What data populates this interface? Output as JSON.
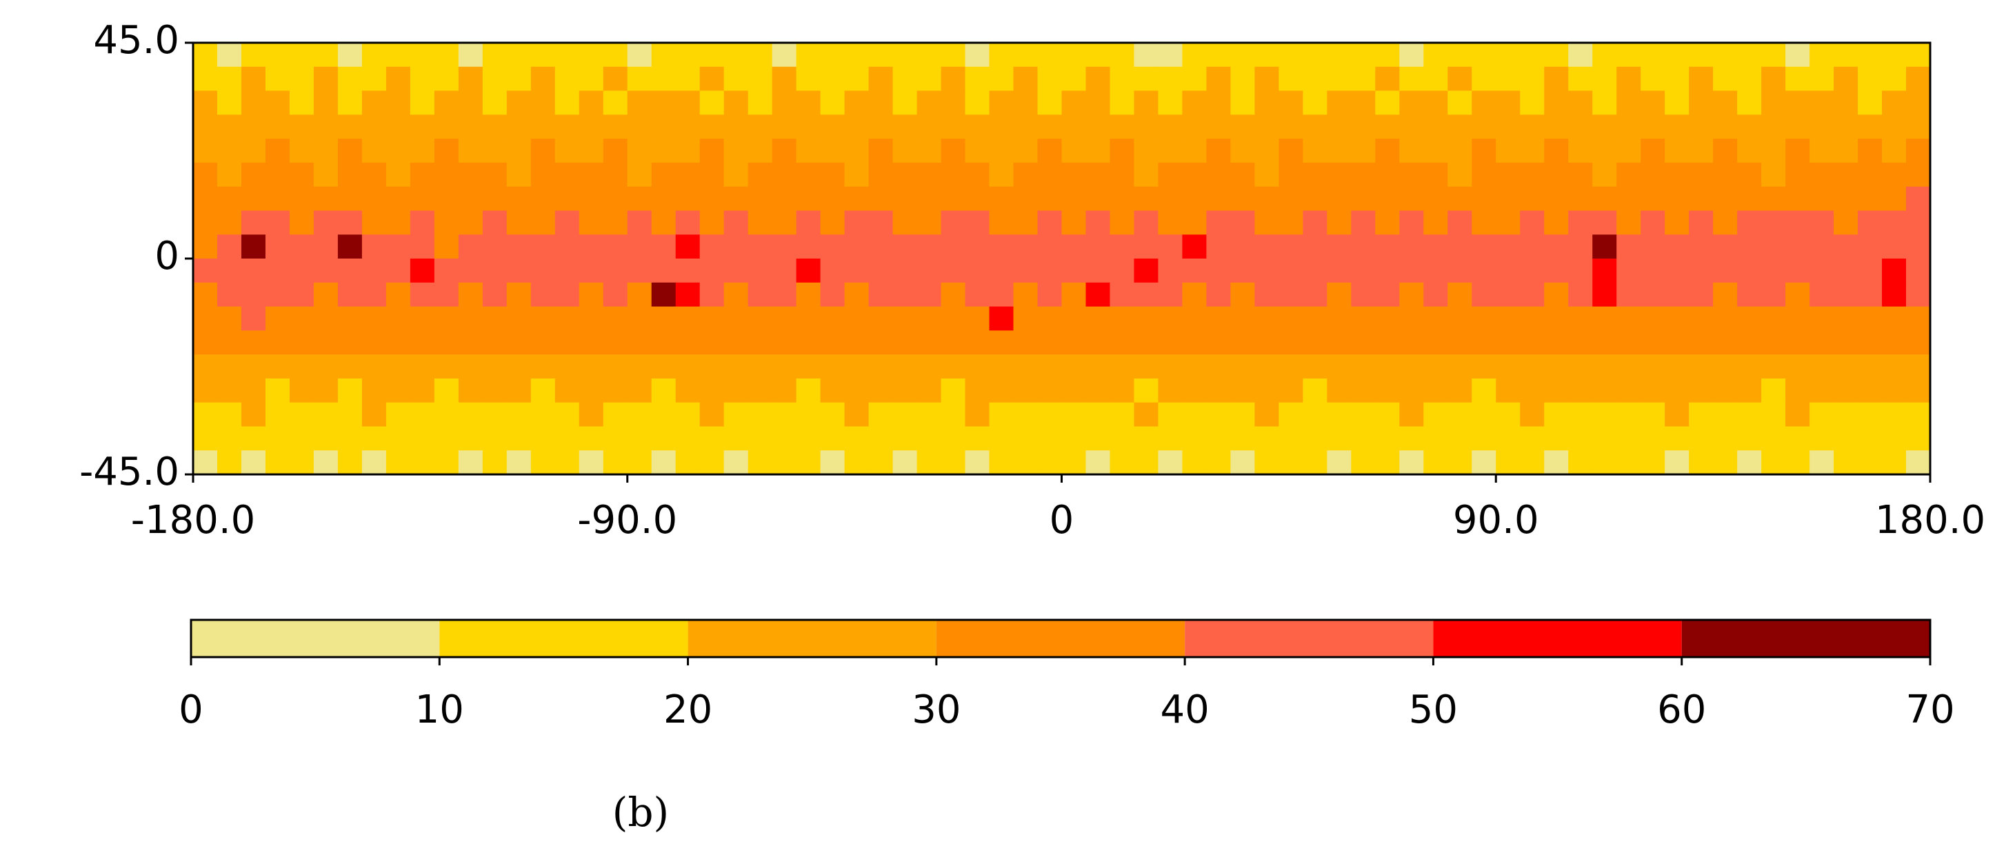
{
  "chart_data": {
    "type": "heatmap",
    "xlim": [
      -180,
      180
    ],
    "ylim": [
      45,
      -45
    ],
    "xticks": [
      {
        "value": -180,
        "label": "-180.0"
      },
      {
        "value": -90,
        "label": "-90.0"
      },
      0,
      {
        "value": 90,
        "label": "90.0"
      },
      {
        "value": 180,
        "label": "180.0"
      }
    ],
    "yticks": [
      {
        "value": 45,
        "label": "45.0"
      },
      0,
      {
        "value": -45,
        "label": "-45.0"
      }
    ],
    "colorbar": {
      "boundaries": [
        0,
        10,
        20,
        30,
        40,
        50,
        60,
        70
      ],
      "colors": [
        "#f0e68c",
        "#ffd700",
        "#ffa500",
        "#ff8c00",
        "#ff6347",
        "#ff0000",
        "#8b0000"
      ]
    },
    "caption": "(b)",
    "values": [
      [
        15,
        8,
        12,
        15,
        18,
        12,
        8,
        15,
        12,
        17,
        15,
        8,
        12,
        15,
        13,
        18,
        12,
        15,
        9,
        15,
        12,
        16,
        14,
        12,
        8,
        15,
        18,
        12,
        15,
        13,
        12,
        16,
        8,
        15,
        12,
        17,
        14,
        12,
        15,
        8,
        9,
        15,
        12,
        16,
        12,
        15,
        14,
        18,
        12,
        15,
        8,
        12,
        15,
        17,
        12,
        15,
        13,
        8,
        15,
        12,
        16,
        12,
        14,
        15,
        18,
        12,
        8,
        15,
        12,
        16,
        13,
        15
      ],
      [
        18,
        15,
        22,
        16,
        19,
        24,
        15,
        17,
        21,
        18,
        16,
        23,
        19,
        15,
        22,
        17,
        18,
        25,
        16,
        19,
        15,
        21,
        18,
        17,
        22,
        16,
        19,
        15,
        23,
        18,
        17,
        21,
        16,
        19,
        24,
        15,
        18,
        22,
        17,
        16,
        19,
        15,
        21,
        18,
        23,
        16,
        17,
        19,
        15,
        22,
        18,
        16,
        21,
        17,
        19,
        15,
        24,
        18,
        16,
        22,
        17,
        19,
        21,
        15,
        18,
        23,
        16,
        17,
        22,
        19,
        18,
        21
      ],
      [
        22,
        18,
        25,
        21,
        17,
        24,
        19,
        23,
        26,
        18,
        21,
        24,
        17,
        22,
        25,
        19,
        23,
        18,
        21,
        26,
        24,
        19,
        22,
        17,
        25,
        21,
        19,
        24,
        22,
        18,
        26,
        23,
        19,
        21,
        25,
        18,
        22,
        24,
        19,
        21,
        17,
        25,
        23,
        19,
        22,
        26,
        18,
        21,
        24,
        19,
        22,
        25,
        18,
        21,
        23,
        17,
        24,
        22,
        19,
        25,
        21,
        18,
        23,
        26,
        19,
        22,
        24,
        21,
        25,
        19,
        23,
        22
      ],
      [
        24,
        22,
        27,
        25,
        21,
        28,
        24,
        26,
        22,
        25,
        29,
        23,
        26,
        24,
        21,
        27,
        25,
        23,
        28,
        24,
        22,
        26,
        25,
        27,
        23,
        26,
        24,
        28,
        22,
        25,
        27,
        24,
        26,
        23,
        25,
        28,
        24,
        22,
        27,
        25,
        23,
        26,
        28,
        24,
        25,
        22,
        27,
        26,
        23,
        25,
        28,
        24,
        26,
        22,
        25,
        27,
        24,
        23,
        26,
        28,
        25,
        24,
        27,
        22,
        26,
        25,
        28,
        23,
        26,
        27,
        25,
        24
      ],
      [
        27,
        25,
        29,
        31,
        26,
        28,
        30,
        27,
        25,
        29,
        32,
        27,
        28,
        26,
        30,
        27,
        29,
        31,
        26,
        28,
        27,
        30,
        25,
        29,
        31,
        27,
        28,
        26,
        30,
        29,
        27,
        31,
        28,
        26,
        29,
        30,
        27,
        28,
        31,
        26,
        29,
        27,
        30,
        28,
        26,
        31,
        29,
        27,
        28,
        30,
        27,
        29,
        26,
        31,
        28,
        27,
        30,
        29,
        26,
        28,
        31,
        27,
        29,
        30,
        28,
        26,
        31,
        29,
        27,
        30,
        28,
        32
      ],
      [
        30,
        28,
        32,
        34,
        31,
        29,
        33,
        30,
        28,
        32,
        34,
        30,
        31,
        29,
        33,
        30,
        32,
        35,
        29,
        31,
        30,
        33,
        28,
        32,
        34,
        30,
        31,
        29,
        33,
        32,
        30,
        34,
        31,
        29,
        32,
        33,
        30,
        31,
        34,
        29,
        32,
        30,
        33,
        31,
        29,
        34,
        32,
        30,
        31,
        33,
        30,
        32,
        29,
        34,
        31,
        30,
        33,
        32,
        29,
        31,
        34,
        30,
        32,
        33,
        31,
        29,
        34,
        32,
        30,
        33,
        31,
        35
      ],
      [
        33,
        35,
        38,
        36,
        34,
        37,
        39,
        35,
        33,
        36,
        34,
        38,
        35,
        33,
        37,
        35,
        36,
        34,
        38,
        36,
        35,
        37,
        33,
        36,
        38,
        35,
        36,
        33,
        37,
        36,
        35,
        38,
        36,
        34,
        37,
        35,
        36,
        35,
        38,
        34,
        37,
        35,
        36,
        38,
        34,
        37,
        36,
        35,
        38,
        36,
        35,
        37,
        34,
        36,
        38,
        35,
        37,
        36,
        34,
        38,
        36,
        35,
        37,
        38,
        36,
        34,
        39,
        37,
        35,
        38,
        36,
        40
      ],
      [
        36,
        38,
        42,
        40,
        37,
        44,
        41,
        38,
        36,
        40,
        39,
        37,
        41,
        38,
        36,
        40,
        38,
        37,
        42,
        39,
        46,
        38,
        40,
        37,
        39,
        41,
        38,
        40,
        44,
        39,
        37,
        40,
        42,
        38,
        39,
        41,
        38,
        40,
        37,
        42,
        39,
        38,
        41,
        40,
        37,
        39,
        42,
        38,
        40,
        39,
        41,
        37,
        40,
        38,
        39,
        42,
        38,
        41,
        43,
        39,
        41,
        38,
        40,
        39,
        42,
        40,
        46,
        41,
        39,
        43,
        42,
        40
      ],
      [
        38,
        42,
        62,
        45,
        40,
        48,
        60,
        44,
        41,
        43,
        39,
        42,
        40,
        44,
        46,
        41,
        42,
        40,
        45,
        43,
        55,
        42,
        41,
        44,
        43,
        41,
        40,
        45,
        42,
        48,
        41,
        43,
        46,
        42,
        40,
        44,
        42,
        45,
        41,
        43,
        44,
        52,
        42,
        41,
        44,
        43,
        46,
        42,
        41,
        44,
        42,
        45,
        43,
        41,
        44,
        42,
        48,
        43,
        62,
        45,
        44,
        42,
        43,
        46,
        41,
        45,
        43,
        44,
        42,
        45,
        44,
        42
      ],
      [
        40,
        44,
        46,
        43,
        41,
        45,
        42,
        44,
        40,
        52,
        43,
        41,
        42,
        45,
        43,
        41,
        44,
        42,
        40,
        43,
        45,
        41,
        42,
        44,
        41,
        52,
        44,
        42,
        43,
        41,
        45,
        42,
        44,
        48,
        43,
        41,
        43,
        44,
        42,
        51,
        45,
        43,
        41,
        44,
        42,
        43,
        45,
        41,
        44,
        42,
        45,
        43,
        41,
        48,
        44,
        42,
        43,
        45,
        58,
        43,
        45,
        43,
        42,
        44,
        46,
        41,
        45,
        43,
        44,
        42,
        50,
        41
      ],
      [
        38,
        41,
        44,
        40,
        42,
        39,
        43,
        41,
        38,
        40,
        42,
        39,
        41,
        38,
        40,
        42,
        39,
        41,
        38,
        60,
        52,
        40,
        39,
        41,
        40,
        39,
        42,
        38,
        41,
        40,
        43,
        39,
        41,
        40,
        38,
        42,
        39,
        52,
        41,
        40,
        42,
        38,
        41,
        39,
        43,
        40,
        41,
        39,
        42,
        40,
        39,
        41,
        38,
        42,
        40,
        43,
        39,
        41,
        52,
        40,
        41,
        43,
        40,
        38,
        42,
        41,
        39,
        40,
        43,
        44,
        52,
        40
      ],
      [
        35,
        38,
        41,
        37,
        36,
        38,
        35,
        37,
        39,
        36,
        38,
        35,
        37,
        36,
        38,
        35,
        37,
        39,
        36,
        38,
        35,
        37,
        36,
        39,
        38,
        35,
        37,
        36,
        39,
        38,
        36,
        35,
        37,
        52,
        38,
        36,
        37,
        38,
        35,
        36,
        38,
        37,
        39,
        36,
        35,
        38,
        37,
        36,
        38,
        36,
        37,
        35,
        39,
        38,
        36,
        37,
        38,
        36,
        35,
        39,
        36,
        38,
        37,
        39,
        35,
        36,
        38,
        37,
        36,
        38,
        37,
        35
      ],
      [
        31,
        33,
        35,
        32,
        30,
        34,
        31,
        33,
        30,
        32,
        34,
        31,
        33,
        30,
        32,
        34,
        31,
        33,
        30,
        32,
        35,
        31,
        33,
        30,
        32,
        34,
        31,
        30,
        33,
        32,
        34,
        31,
        30,
        33,
        32,
        31,
        34,
        32,
        30,
        33,
        31,
        32,
        34,
        30,
        33,
        31,
        32,
        34,
        31,
        33,
        32,
        30,
        34,
        31,
        33,
        32,
        30,
        31,
        34,
        32,
        33,
        30,
        32,
        34,
        31,
        33,
        30,
        32,
        31,
        34,
        33,
        31
      ],
      [
        26,
        24,
        28,
        25,
        27,
        23,
        26,
        29,
        24,
        27,
        25,
        26,
        24,
        27,
        25,
        23,
        28,
        26,
        24,
        27,
        22,
        25,
        28,
        24,
        27,
        25,
        26,
        24,
        28,
        23,
        26,
        25,
        27,
        24,
        26,
        28,
        25,
        27,
        24,
        26,
        23,
        28,
        25,
        27,
        24,
        26,
        25,
        27,
        24,
        26,
        28,
        25,
        27,
        23,
        26,
        24,
        28,
        25,
        27,
        24,
        26,
        28,
        25,
        24,
        27,
        26,
        23,
        28,
        25,
        27,
        24,
        26
      ],
      [
        22,
        20,
        24,
        18,
        23,
        21,
        19,
        25,
        22,
        20,
        18,
        23,
        21,
        24,
        19,
        22,
        20,
        23,
        21,
        18,
        24,
        22,
        20,
        21,
        23,
        19,
        22,
        24,
        20,
        21,
        23,
        19,
        22,
        25,
        21,
        20,
        22,
        24,
        21,
        19,
        23,
        22,
        20,
        24,
        21,
        23,
        19,
        22,
        20,
        23,
        21,
        24,
        22,
        19,
        23,
        21,
        20,
        24,
        22,
        21,
        23,
        20,
        22,
        24,
        21,
        19,
        23,
        22,
        20,
        24,
        21,
        22
      ],
      [
        18,
        16,
        20,
        17,
        19,
        15,
        18,
        21,
        16,
        19,
        17,
        18,
        16,
        19,
        17,
        15,
        20,
        18,
        16,
        19,
        17,
        21,
        16,
        18,
        19,
        17,
        16,
        20,
        18,
        15,
        19,
        17,
        21,
        16,
        18,
        19,
        17,
        18,
        16,
        20,
        17,
        19,
        15,
        18,
        21,
        17,
        16,
        19,
        18,
        16,
        20,
        17,
        19,
        18,
        16,
        21,
        17,
        18,
        15,
        19,
        17,
        20,
        18,
        16,
        19,
        17,
        21,
        18,
        16,
        19,
        17,
        18
      ],
      [
        15,
        13,
        17,
        14,
        16,
        12,
        15,
        18,
        13,
        16,
        14,
        15,
        13,
        16,
        14,
        12,
        17,
        15,
        13,
        16,
        14,
        12,
        15,
        17,
        16,
        14,
        13,
        17,
        15,
        12,
        16,
        14,
        18,
        13,
        15,
        16,
        14,
        15,
        13,
        17,
        14,
        16,
        12,
        15,
        18,
        14,
        13,
        16,
        15,
        13,
        17,
        14,
        16,
        15,
        13,
        18,
        14,
        15,
        12,
        16,
        14,
        17,
        15,
        13,
        16,
        14,
        18,
        15,
        13,
        16,
        14,
        15
      ],
      [
        9,
        12,
        8,
        14,
        11,
        9,
        13,
        8,
        12,
        10,
        14,
        9,
        12,
        8,
        13,
        11,
        9,
        14,
        12,
        8,
        11,
        13,
        9,
        12,
        14,
        11,
        8,
        12,
        13,
        9,
        11,
        14,
        8,
        12,
        10,
        13,
        11,
        9,
        14,
        12,
        8,
        13,
        11,
        9,
        12,
        14,
        10,
        8,
        13,
        11,
        9,
        12,
        14,
        8,
        11,
        13,
        9,
        12,
        11,
        14,
        12,
        9,
        13,
        11,
        8,
        14,
        12,
        9,
        11,
        13,
        12,
        9
      ]
    ]
  }
}
